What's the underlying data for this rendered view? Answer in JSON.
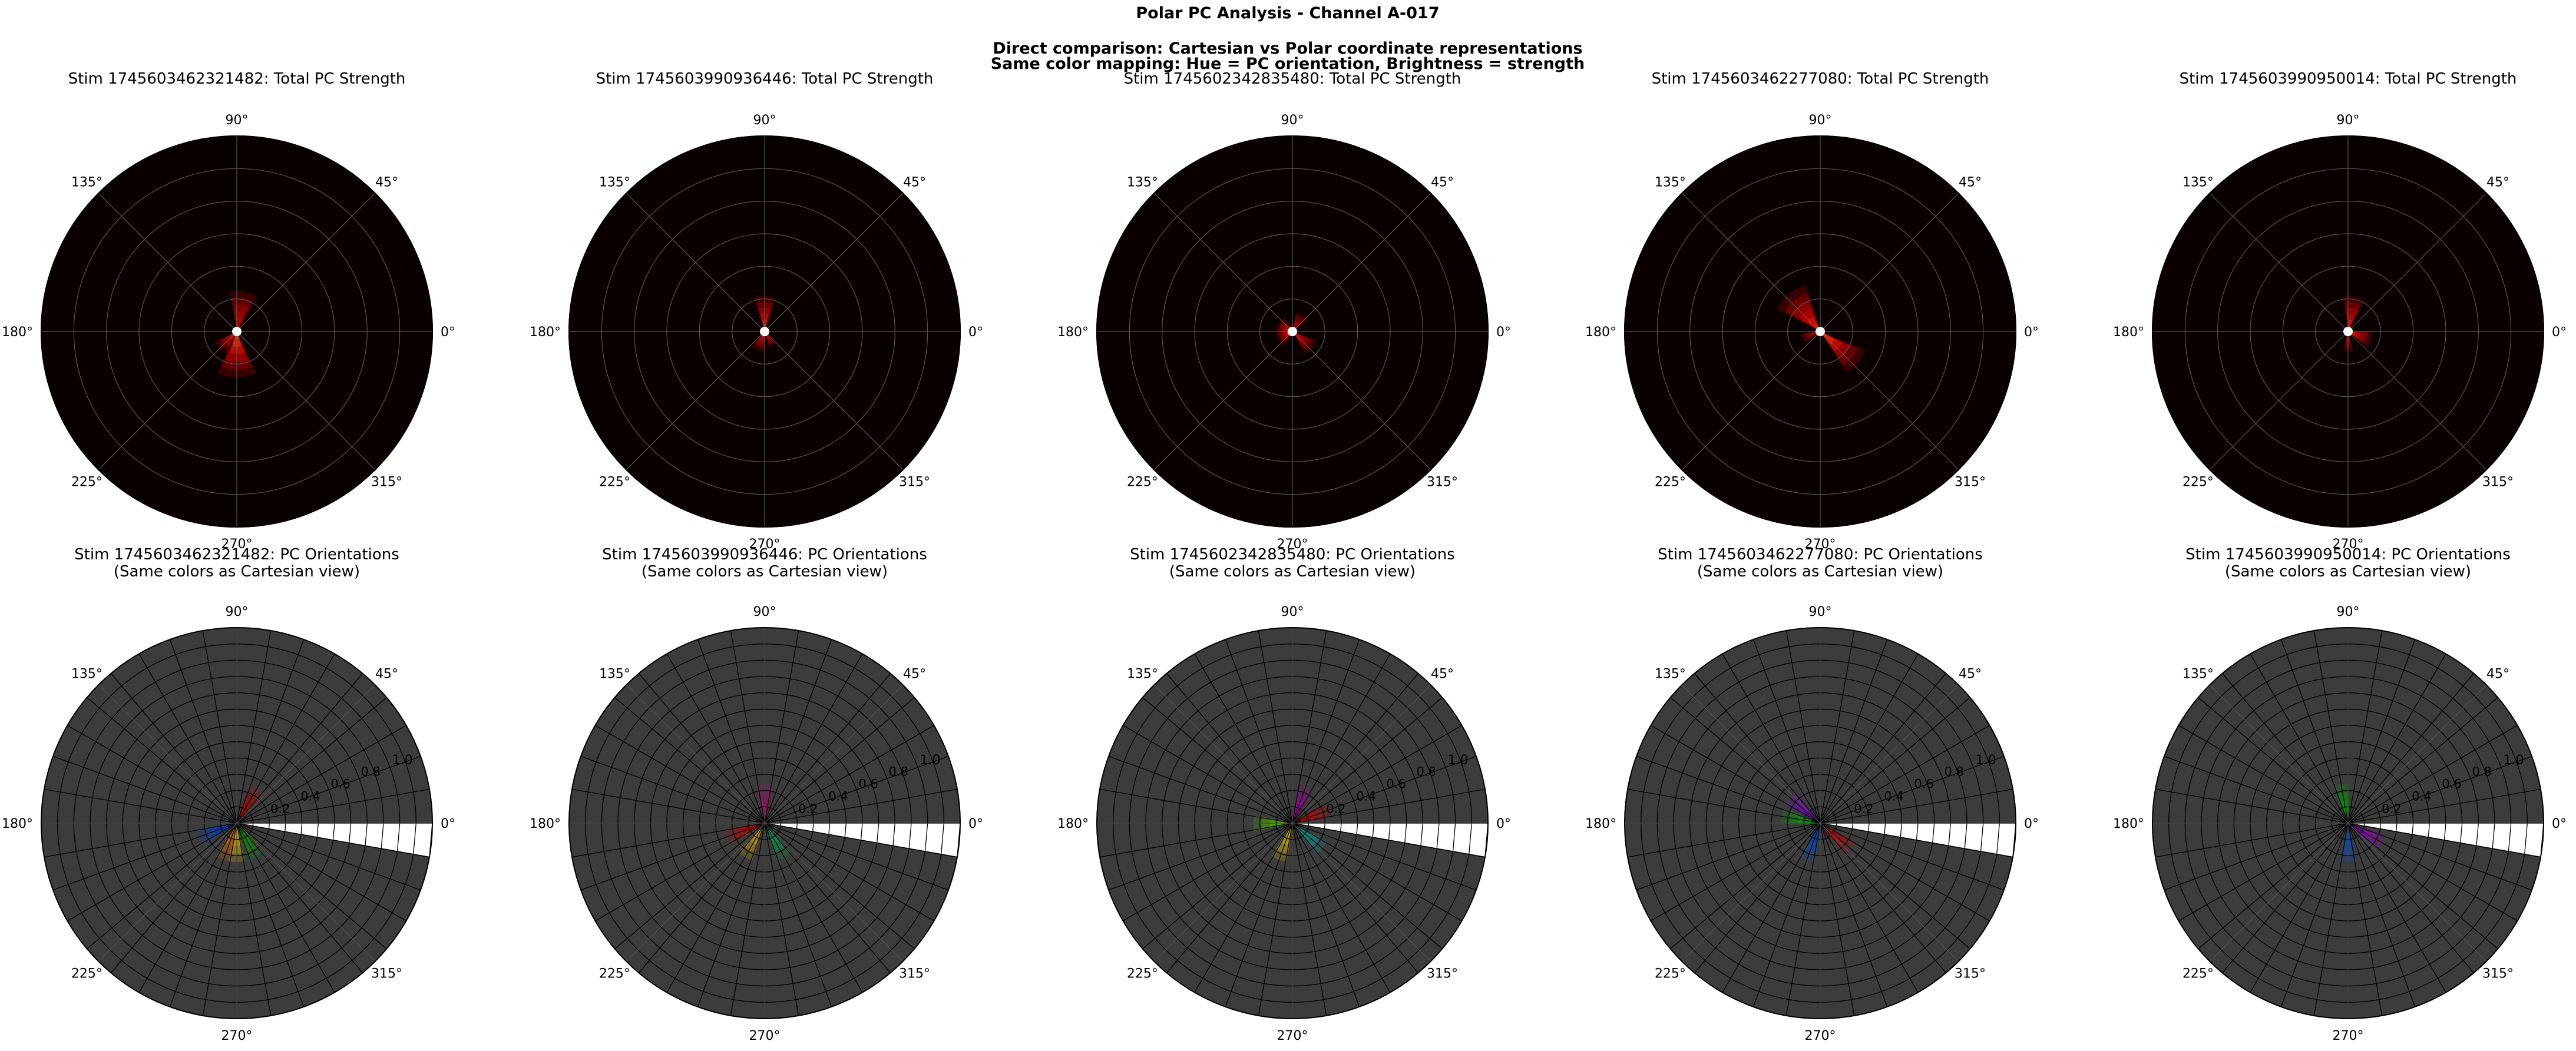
{
  "figure": {
    "suptitle": "Polar PC Analysis - Channel A-017",
    "subtitle_line1": "Direct comparison: Cartesian vs Polar coordinate representations",
    "subtitle_line2": "Same color mapping: Hue = PC orientation, Brightness = strength"
  },
  "colors": {
    "strength_background": "#0a0000",
    "orientation_background": "#3c3c3c",
    "grid_dark": "#555555",
    "grid_light": "#000000",
    "center_marker": "#ffffff"
  },
  "chart_data": [
    {
      "type": "heatmap",
      "projection": "polar",
      "title": "Stim 1745603462321482: Total PC Strength",
      "theta_ticks": [
        "0°",
        "45°",
        "90°",
        "135°",
        "180°",
        "225°",
        "270°",
        "315°"
      ],
      "r_ticks": [
        "1.0"
      ],
      "rlim": [
        0,
        1.2
      ],
      "blobs": [
        {
          "theta_deg": 270,
          "r": 0.1,
          "spread_deg": 50,
          "length": 0.28,
          "intensity": 0.95
        },
        {
          "theta_deg": 80,
          "r": 0.1,
          "spread_deg": 40,
          "length": 0.25,
          "intensity": 0.55
        },
        {
          "theta_deg": 225,
          "r": 0.05,
          "spread_deg": 40,
          "length": 0.15,
          "intensity": 0.7
        }
      ]
    },
    {
      "type": "heatmap",
      "projection": "polar",
      "title": "Stim 1745603990936446: Total PC Strength",
      "theta_ticks": [
        "0°",
        "45°",
        "90°",
        "135°",
        "180°",
        "225°",
        "270°",
        "315°"
      ],
      "r_ticks": [
        "1.0"
      ],
      "rlim": [
        0,
        1.2
      ],
      "blobs": [
        {
          "theta_deg": 90,
          "r": 0.08,
          "spread_deg": 35,
          "length": 0.22,
          "intensity": 0.85
        },
        {
          "theta_deg": 250,
          "r": 0.05,
          "spread_deg": 40,
          "length": 0.12,
          "intensity": 0.8
        },
        {
          "theta_deg": 300,
          "r": 0.05,
          "spread_deg": 30,
          "length": 0.1,
          "intensity": 0.6
        }
      ]
    },
    {
      "type": "heatmap",
      "projection": "polar",
      "title": "Stim 1745602342835480: Total PC Strength",
      "theta_ticks": [
        "0°",
        "45°",
        "90°",
        "135°",
        "180°",
        "225°",
        "270°",
        "315°"
      ],
      "r_ticks": [
        "1.0"
      ],
      "rlim": [
        0,
        1.2
      ],
      "blobs": [
        {
          "theta_deg": 180,
          "r": 0.03,
          "spread_deg": 120,
          "length": 0.1,
          "intensity": 0.9
        },
        {
          "theta_deg": 320,
          "r": 0.05,
          "spread_deg": 40,
          "length": 0.16,
          "intensity": 0.6
        },
        {
          "theta_deg": 60,
          "r": 0.05,
          "spread_deg": 40,
          "length": 0.12,
          "intensity": 0.5
        }
      ]
    },
    {
      "type": "heatmap",
      "projection": "polar",
      "title": "Stim 1745603462277080: Total PC Strength",
      "theta_ticks": [
        "0°",
        "45°",
        "90°",
        "135°",
        "180°",
        "225°",
        "270°",
        "315°"
      ],
      "r_ticks": [
        "1.0"
      ],
      "rlim": [
        0,
        1.2
      ],
      "blobs": [
        {
          "theta_deg": 130,
          "r": 0.1,
          "spread_deg": 45,
          "length": 0.3,
          "intensity": 0.8
        },
        {
          "theta_deg": 320,
          "r": 0.1,
          "spread_deg": 35,
          "length": 0.3,
          "intensity": 0.95
        },
        {
          "theta_deg": 200,
          "r": 0.05,
          "spread_deg": 30,
          "length": 0.12,
          "intensity": 0.5
        }
      ]
    },
    {
      "type": "heatmap",
      "projection": "polar",
      "title": "Stim 1745603990950014: Total PC Strength",
      "theta_ticks": [
        "0°",
        "45°",
        "90°",
        "135°",
        "180°",
        "225°",
        "270°",
        "315°"
      ],
      "r_ticks": [
        "1.0"
      ],
      "rlim": [
        0,
        1.2
      ],
      "blobs": [
        {
          "theta_deg": 80,
          "r": 0.08,
          "spread_deg": 35,
          "length": 0.22,
          "intensity": 0.8
        },
        {
          "theta_deg": 340,
          "r": 0.05,
          "spread_deg": 40,
          "length": 0.15,
          "intensity": 0.85
        },
        {
          "theta_deg": 270,
          "r": 0.05,
          "spread_deg": 30,
          "length": 0.12,
          "intensity": 0.55
        }
      ]
    },
    {
      "type": "heatmap",
      "projection": "polar",
      "title": "Stim 1745603462321482: PC Orientations\n(Same colors as Cartesian view)",
      "theta_ticks": [
        "0°",
        "45°",
        "90°",
        "135°",
        "180°",
        "225°",
        "270°",
        "315°"
      ],
      "r_ticks": [
        "0.2",
        "0.4",
        "0.6",
        "0.8",
        "1.0"
      ],
      "rlim": [
        0,
        1.2
      ],
      "theta_bins": 36,
      "r_bins": 12,
      "missing_wedge_deg": [
        -10,
        0
      ],
      "center_colors": [
        {
          "theta_deg": 270,
          "color": "#c8b400"
        },
        {
          "theta_deg": 250,
          "color": "#c86400"
        },
        {
          "theta_deg": 200,
          "color": "#0040c8"
        },
        {
          "theta_deg": 60,
          "color": "#b40000"
        },
        {
          "theta_deg": 300,
          "color": "#00a000"
        }
      ]
    },
    {
      "type": "heatmap",
      "projection": "polar",
      "title": "Stim 1745603990936446: PC Orientations\n(Same colors as Cartesian view)",
      "theta_ticks": [
        "0°",
        "45°",
        "90°",
        "135°",
        "180°",
        "225°",
        "270°",
        "315°"
      ],
      "r_ticks": [
        "0.2",
        "0.4",
        "0.6",
        "0.8",
        "1.0"
      ],
      "rlim": [
        0,
        1.2
      ],
      "theta_bins": 36,
      "r_bins": 12,
      "missing_wedge_deg": [
        -10,
        0
      ],
      "center_colors": [
        {
          "theta_deg": 90,
          "color": "#b40078"
        },
        {
          "theta_deg": 240,
          "color": "#c8a000"
        },
        {
          "theta_deg": 300,
          "color": "#00a050"
        },
        {
          "theta_deg": 200,
          "color": "#c80000"
        }
      ]
    },
    {
      "type": "heatmap",
      "projection": "polar",
      "title": "Stim 1745602342835480: PC Orientations\n(Same colors as Cartesian view)",
      "theta_ticks": [
        "0°",
        "45°",
        "90°",
        "135°",
        "180°",
        "225°",
        "270°",
        "315°"
      ],
      "r_ticks": [
        "0.2",
        "0.4",
        "0.6",
        "0.8",
        "1.0"
      ],
      "rlim": [
        0,
        1.2
      ],
      "theta_bins": 36,
      "r_bins": 12,
      "missing_wedge_deg": [
        -10,
        0
      ],
      "center_colors": [
        {
          "theta_deg": 180,
          "color": "#50b400"
        },
        {
          "theta_deg": 250,
          "color": "#c8b400"
        },
        {
          "theta_deg": 320,
          "color": "#00a0a0"
        },
        {
          "theta_deg": 70,
          "color": "#a000a0"
        },
        {
          "theta_deg": 20,
          "color": "#c80000"
        }
      ]
    },
    {
      "type": "heatmap",
      "projection": "polar",
      "title": "Stim 1745603462277080: PC Orientations\n(Same colors as Cartesian view)",
      "theta_ticks": [
        "0°",
        "45°",
        "90°",
        "135°",
        "180°",
        "225°",
        "270°",
        "315°"
      ],
      "r_ticks": [
        "0.2",
        "0.4",
        "0.6",
        "0.8",
        "1.0"
      ],
      "rlim": [
        0,
        1.2
      ],
      "theta_bins": 36,
      "r_bins": 12,
      "missing_wedge_deg": [
        -10,
        0
      ],
      "center_colors": [
        {
          "theta_deg": 140,
          "color": "#8000c8"
        },
        {
          "theta_deg": 170,
          "color": "#00a000"
        },
        {
          "theta_deg": 320,
          "color": "#c80000"
        },
        {
          "theta_deg": 250,
          "color": "#0050c8"
        }
      ]
    },
    {
      "type": "heatmap",
      "projection": "polar",
      "title": "Stim 1745603990950014: PC Orientations\n(Same colors as Cartesian view)",
      "theta_ticks": [
        "0°",
        "45°",
        "90°",
        "135°",
        "180°",
        "225°",
        "270°",
        "315°"
      ],
      "r_ticks": [
        "0.2",
        "0.4",
        "0.6",
        "0.8",
        "1.0"
      ],
      "rlim": [
        0,
        1.2
      ],
      "theta_bins": 36,
      "r_bins": 12,
      "missing_wedge_deg": [
        -10,
        0
      ],
      "center_colors": [
        {
          "theta_deg": 330,
          "color": "#9600c8"
        },
        {
          "theta_deg": 100,
          "color": "#00a000"
        },
        {
          "theta_deg": 270,
          "color": "#0050c8"
        }
      ]
    }
  ]
}
